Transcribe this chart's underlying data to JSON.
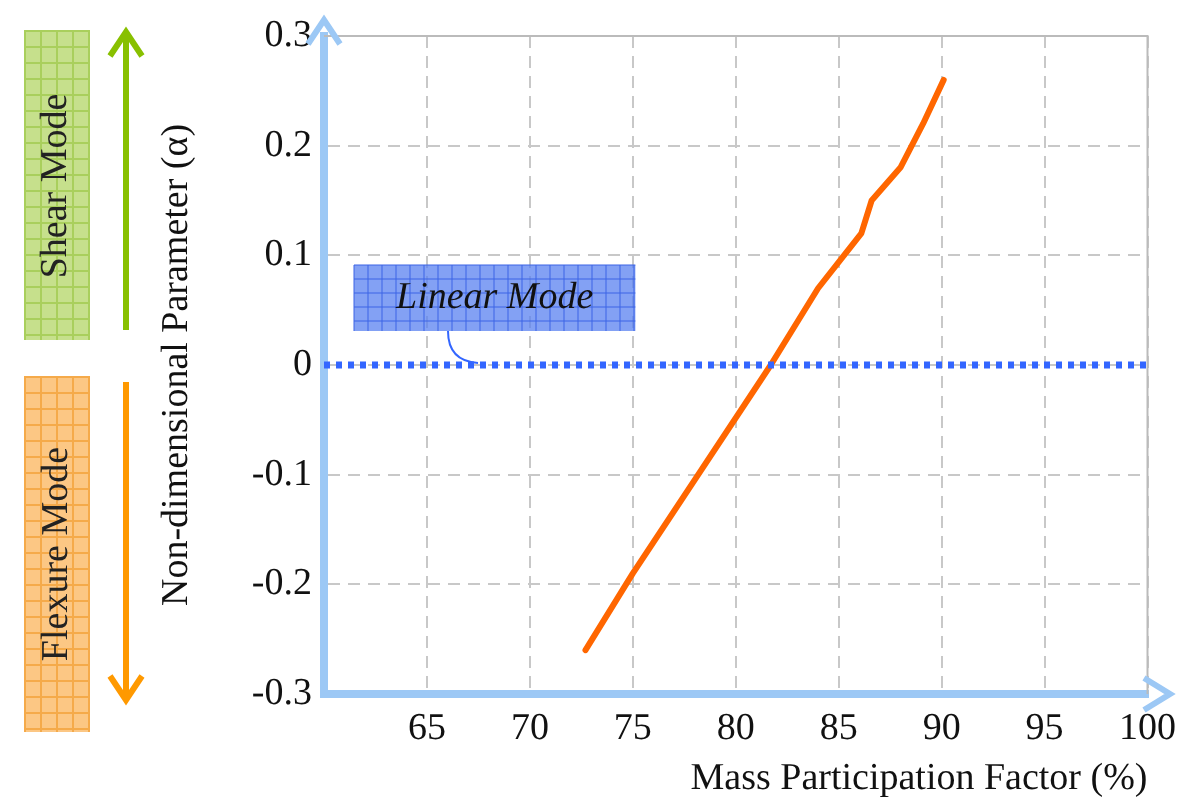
{
  "chart_data": {
    "type": "line",
    "xlabel": "Mass Participation Factor (%)",
    "ylabel": "Non-dimensional Parameter (α)",
    "x": [
      72.7,
      75,
      78,
      81.7,
      84,
      86.1,
      86.6,
      88,
      89.1,
      90.1
    ],
    "series": [
      {
        "color": "#ff6600",
        "values": [
          -0.26,
          -0.19,
          -0.105,
          0,
          0.07,
          0.12,
          0.15,
          0.18,
          0.22,
          0.26
        ]
      }
    ],
    "xlim": [
      60,
      100
    ],
    "xticks": [
      65,
      70,
      75,
      80,
      85,
      90,
      95,
      100
    ],
    "ylim": [
      -0.3,
      0.3
    ],
    "yticks": [
      -0.3,
      -0.2,
      -0.1,
      0,
      0.1,
      0.2,
      0.3
    ],
    "grid": true,
    "legend": false,
    "marker": "none",
    "line_style": "solid",
    "ref_lines": [
      {
        "axis": "y",
        "value": 0,
        "label": "Linear Mode",
        "color": "#3366ff",
        "line_style": "dotted"
      }
    ],
    "annotations": [
      "Shear Mode",
      "Flexure Mode"
    ]
  }
}
